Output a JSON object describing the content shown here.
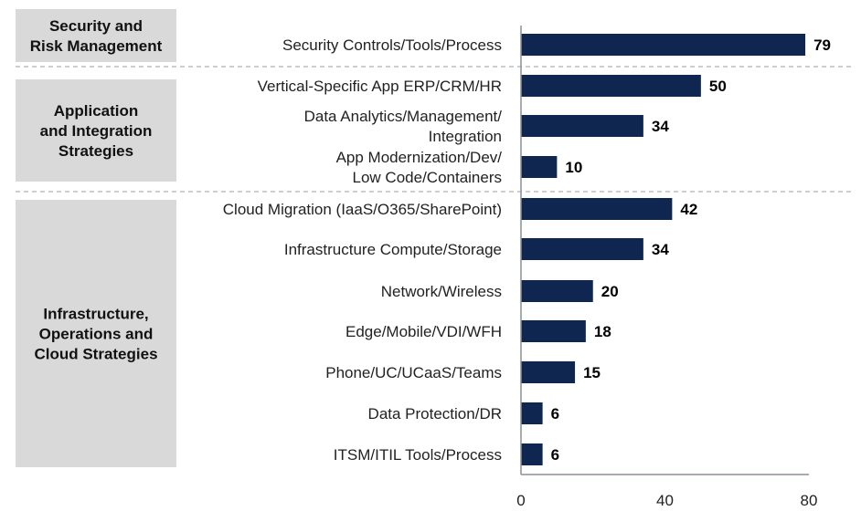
{
  "chart_data": {
    "type": "bar",
    "orientation": "horizontal",
    "groups": [
      {
        "label_lines": [
          "Security and",
          "Risk Management"
        ],
        "count": 1
      },
      {
        "label_lines": [
          "Application",
          "and Integration",
          "Strategies"
        ],
        "count": 3
      },
      {
        "label_lines": [
          "Infrastructure,",
          "Operations and",
          "Cloud Strategies"
        ],
        "count": 7
      }
    ],
    "categories": [
      [
        "Security Controls/Tools/Process"
      ],
      [
        "Vertical-Specific App ERP/CRM/HR"
      ],
      [
        "Data Analytics/Management/",
        "Integration"
      ],
      [
        "App Modernization/Dev/",
        "Low Code/Containers"
      ],
      [
        "Cloud Migration (IaaS/O365/SharePoint)"
      ],
      [
        "Infrastructure Compute/Storage"
      ],
      [
        "Network/Wireless"
      ],
      [
        "Edge/Mobile/VDI/WFH"
      ],
      [
        "Phone/UC/UCaaS/Teams"
      ],
      [
        "Data Protection/DR"
      ],
      [
        "ITSM/ITIL Tools/Process"
      ]
    ],
    "values": [
      79,
      50,
      34,
      10,
      42,
      34,
      20,
      18,
      15,
      6,
      6
    ],
    "xlim": [
      0,
      80
    ],
    "xticks": [
      "0",
      "40",
      "80"
    ],
    "data_labels": true,
    "grid": false,
    "colors": {
      "bar": "#0f2650",
      "group_box": "#d9d9d9",
      "divider": "#b0b0b0"
    }
  }
}
